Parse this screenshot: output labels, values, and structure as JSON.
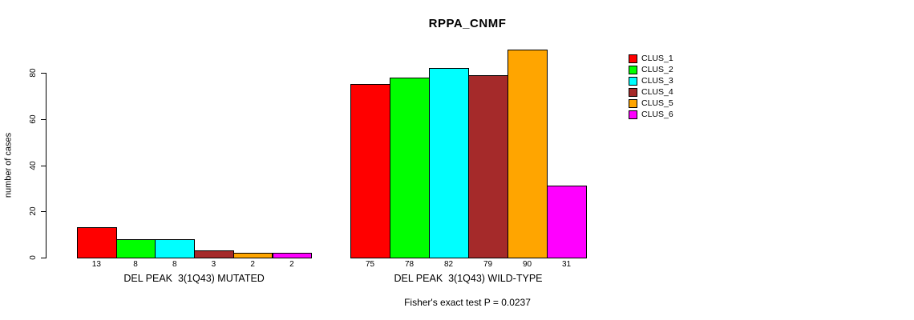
{
  "chart_data": {
    "type": "bar",
    "title": "RPPA_CNMF",
    "ylabel": "number of cases",
    "ylim": [
      0,
      90
    ],
    "yticks": [
      0,
      20,
      40,
      60,
      80
    ],
    "grid": false,
    "legend_position": "right",
    "series": [
      "CLUS_1",
      "CLUS_2",
      "CLUS_3",
      "CLUS_4",
      "CLUS_5",
      "CLUS_6"
    ],
    "colors": [
      "#FF0000",
      "#00FF00",
      "#00FFFF",
      "#A52A2A",
      "#FFA500",
      "#FF00FF"
    ],
    "groups": [
      {
        "label": "DEL PEAK  3(1Q43) MUTATED",
        "values": [
          13,
          8,
          8,
          3,
          2,
          2
        ]
      },
      {
        "label": "DEL PEAK  3(1Q43) WILD-TYPE",
        "values": [
          75,
          78,
          82,
          79,
          90,
          31
        ]
      }
    ],
    "bar_labels_shown": true,
    "annotation": "Fisher's exact test P = 0.0237"
  }
}
